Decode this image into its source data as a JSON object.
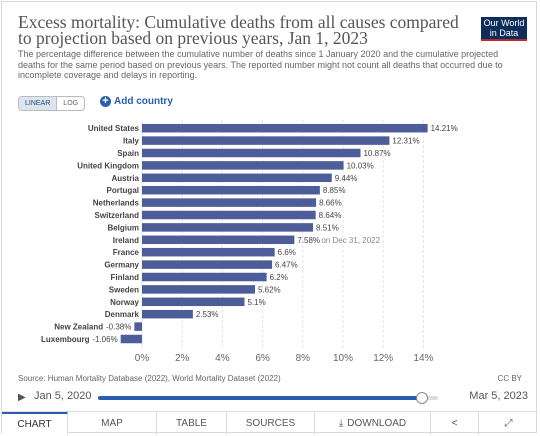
{
  "header": {
    "title": "Excess mortality: Cumulative deaths from all causes compared to projection based on previous years, Jan 1, 2023",
    "subtitle": "The percentage difference between the cumulative number of deaths since 1 January 2020 and the cumulative projected deaths for the same period based on previous years. The reported number might not count all deaths that occurred due to incomplete coverage and delays in reporting.",
    "logo_line1": "Our World",
    "logo_line2": "in Data"
  },
  "controls": {
    "linear_label": "LINEAR",
    "log_label": "LOG",
    "add_country_label": "Add country"
  },
  "chart_data": {
    "type": "bar",
    "orientation": "horizontal",
    "categories": [
      "United States",
      "Italy",
      "Spain",
      "United Kingdom",
      "Austria",
      "Portugal",
      "Netherlands",
      "Switzerland",
      "Belgium",
      "Ireland",
      "France",
      "Germany",
      "Finland",
      "Sweden",
      "Norway",
      "Denmark",
      "New Zealand",
      "Luxembourg"
    ],
    "values": [
      14.21,
      12.31,
      10.87,
      10.03,
      9.44,
      8.85,
      8.66,
      8.64,
      8.51,
      7.58,
      6.6,
      6.47,
      6.2,
      5.62,
      5.1,
      2.53,
      -0.38,
      -1.06
    ],
    "value_labels": [
      "14.21%",
      "12.31%",
      "10.87%",
      "10.03%",
      "9.44%",
      "8.85%",
      "8.66%",
      "8.64%",
      "8.51%",
      "7.58%",
      "6.6%",
      "6.47%",
      "6.2%",
      "5.62%",
      "5.1%",
      "2.53%",
      "-0.38%",
      "-1.06%"
    ],
    "annotations": [
      {
        "category": "Ireland",
        "text": "on Dec 31, 2022"
      }
    ],
    "xticks": [
      "0%",
      "2%",
      "4%",
      "6%",
      "8%",
      "10%",
      "12%",
      "14%"
    ],
    "xtick_values": [
      0,
      2,
      4,
      6,
      8,
      10,
      12,
      14
    ],
    "xlim": [
      -1.06,
      14.21
    ],
    "grid": true,
    "bar_color": "#4c5d99"
  },
  "footer": {
    "source": "Source: Human Mortality Database (2022), World Mortality Dataset (2022)",
    "license": "CC BY",
    "timeline_start": "Jan 5, 2020",
    "timeline_end": "Mar 5, 2023",
    "timeline_progress": 0.95
  },
  "tabs": [
    {
      "label": "CHART"
    },
    {
      "label": "MAP"
    },
    {
      "label": "TABLE"
    },
    {
      "label": "SOURCES"
    },
    {
      "label": "DOWNLOAD"
    }
  ],
  "icons": {
    "play": "play-icon",
    "download": "download-icon",
    "share": "share-icon",
    "fullscreen": "fullscreen-icon"
  }
}
